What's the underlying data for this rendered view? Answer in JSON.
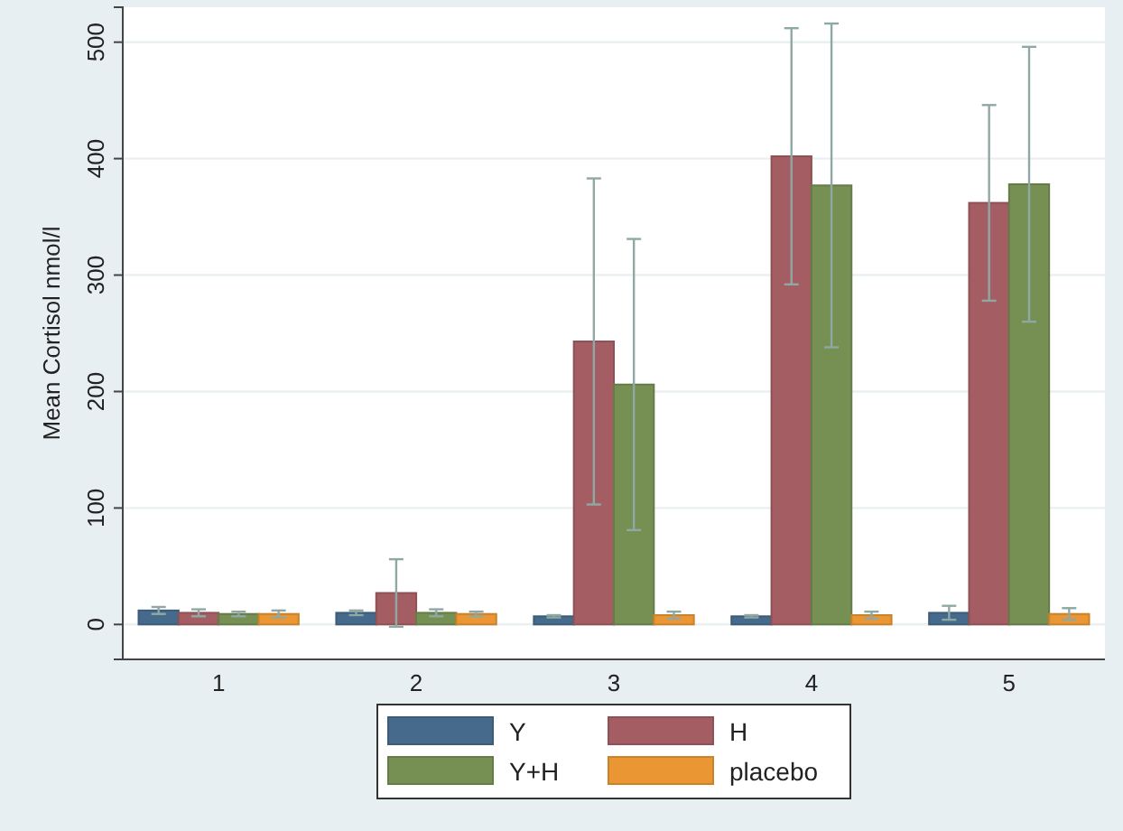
{
  "chart_data": {
    "type": "bar",
    "ylabel": "Mean Cortisol nmol/l",
    "categories": [
      "1",
      "2",
      "3",
      "4",
      "5"
    ],
    "series": [
      {
        "name": "Y",
        "color": "#456a8c",
        "values": [
          12,
          10,
          7,
          7,
          10
        ],
        "errors": [
          3,
          2,
          1,
          1,
          6
        ]
      },
      {
        "name": "H",
        "color": "#a45d62",
        "values": [
          10,
          27,
          243,
          402,
          362
        ],
        "errors": [
          3,
          29,
          140,
          110,
          84
        ]
      },
      {
        "name": "Y+H",
        "color": "#768f53",
        "values": [
          9,
          10,
          206,
          377,
          378
        ],
        "errors": [
          2,
          3,
          125,
          139,
          118
        ]
      },
      {
        "name": "placebo",
        "color": "#e99633",
        "values": [
          9,
          9,
          8,
          8,
          9
        ],
        "errors": [
          3,
          2,
          3,
          3,
          5
        ]
      }
    ],
    "ylim": [
      -30,
      530
    ],
    "yticks": [
      0,
      100,
      200,
      300,
      400,
      500
    ],
    "grid": "y",
    "legend": "bottom"
  }
}
